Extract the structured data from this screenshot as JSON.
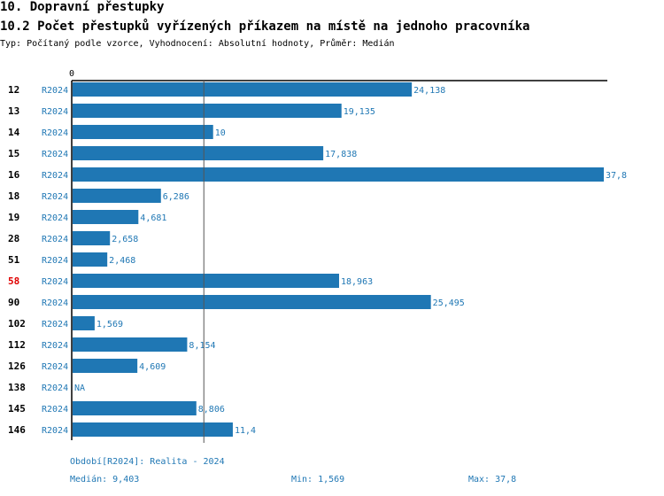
{
  "title": "10. Dopravní přestupky",
  "subtitle": "10.2 Počet přestupků vyřízených příkazem na místě na jednoho pracovníka",
  "description": "Typ: Počítaný podle vzorce, Vyhodnocení: Absolutní hodnoty, Průměr: Medián",
  "colors": {
    "bar": "#1f77b4",
    "highlight": "#e00000",
    "text": "#000000"
  },
  "chart_data": {
    "type": "bar",
    "orientation": "horizontal",
    "x_tick": "0",
    "xlim": [
      0,
      37.8
    ],
    "series_label": "R2024",
    "highlight_category": "58",
    "median": 9.403,
    "categories": [
      "12",
      "13",
      "14",
      "15",
      "16",
      "18",
      "19",
      "28",
      "51",
      "58",
      "90",
      "102",
      "112",
      "126",
      "138",
      "145",
      "146"
    ],
    "values": [
      24.138,
      19.135,
      10,
      17.838,
      37.8,
      6.286,
      4.681,
      2.658,
      2.468,
      18.963,
      25.495,
      1.569,
      8.154,
      4.609,
      null,
      8.806,
      11.4
    ],
    "labels": [
      "24,138",
      "19,135",
      "10",
      "17,838",
      "37,8",
      "6,286",
      "4,681",
      "2,658",
      "2,468",
      "18,963",
      "25,495",
      "1,569",
      "8,154",
      "4,609",
      "NA",
      "8,806",
      "11,4"
    ]
  },
  "footer": {
    "period": "Období[R2024]: Realita - 2024",
    "median": "Medián: 9,403",
    "min": "Min: 1,569",
    "max": "Max: 37,8"
  }
}
